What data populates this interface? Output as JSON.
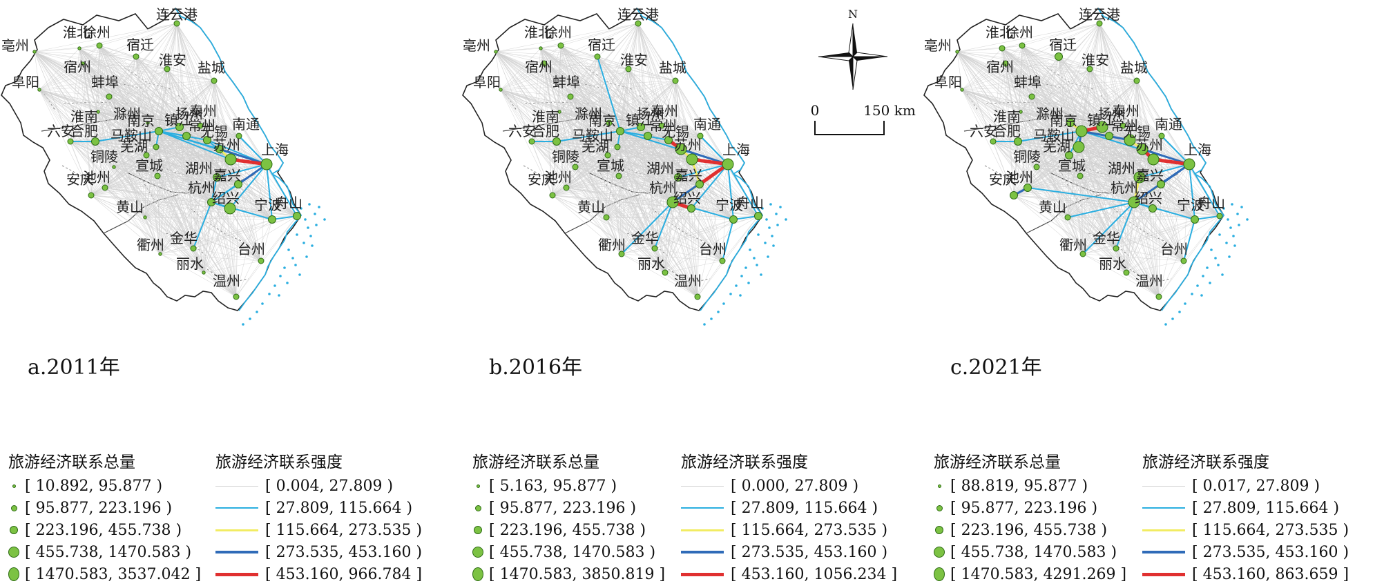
{
  "compass": {
    "north_label": "N"
  },
  "scale_bar": {
    "zero_label": "0",
    "distance_label": "150 km"
  },
  "legend_titles": {
    "total": "旅游经济联系总量",
    "strength": "旅游经济联系强度"
  },
  "line_colors": [
    "#d0d0d0",
    "#2aaee0",
    "#f2ec62",
    "#2f6bb8",
    "#e03030"
  ],
  "node_color": "#7cc243",
  "coast_color": "#2aaee0",
  "panels": [
    {
      "year_label": "a.2011年",
      "total_classes": [
        "[ 10.892, 95.877 )",
        "[ 95.877, 223.196 )",
        "[ 223.196, 455.738 )",
        "[ 455.738, 1470.583 )",
        "[ 1470.583, 3537.042 ]"
      ],
      "strength_classes": [
        "[ 0.004, 27.809 )",
        "[ 27.809, 115.664 )",
        "[ 115.664, 273.535 )",
        "[ 273.535, 453.160 )",
        "[ 453.160, 966.784 ]"
      ]
    },
    {
      "year_label": "b.2016年",
      "total_classes": [
        "[ 5.163, 95.877 )",
        "[ 95.877, 223.196 )",
        "[ 223.196, 455.738 )",
        "[ 455.738, 1470.583 )",
        "[ 1470.583, 3850.819 ]"
      ],
      "strength_classes": [
        "[ 0.000, 27.809 )",
        "[ 27.809, 115.664 )",
        "[ 115.664, 273.535 )",
        "[ 273.535, 453.160 )",
        "[ 453.160, 1056.234 ]"
      ]
    },
    {
      "year_label": "c.2021年",
      "total_classes": [
        "[ 88.819, 95.877 )",
        "[ 95.877, 223.196 )",
        "[ 223.196, 455.738 )",
        "[ 455.738, 1470.583 )",
        "[ 1470.583, 4291.269 ]"
      ],
      "strength_classes": [
        "[ 0.017, 27.809 )",
        "[ 27.809, 115.664 )",
        "[ 115.664, 273.535 )",
        "[ 273.535, 453.160 )",
        "[ 453.160, 863.659 ]"
      ]
    }
  ],
  "cities": [
    {
      "name": "连云港",
      "class": [
        1,
        1,
        1
      ]
    },
    {
      "name": "徐州",
      "class": [
        1,
        1,
        1
      ]
    },
    {
      "name": "宿迁",
      "class": [
        1,
        1,
        2
      ]
    },
    {
      "name": "淮北",
      "class": [
        0,
        0,
        1
      ]
    },
    {
      "name": "亳州",
      "class": [
        0,
        0,
        0
      ]
    },
    {
      "name": "宿州",
      "class": [
        0,
        1,
        1
      ]
    },
    {
      "name": "淮安",
      "class": [
        1,
        1,
        1
      ]
    },
    {
      "name": "盐城",
      "class": [
        1,
        1,
        1
      ]
    },
    {
      "name": "阜阳",
      "class": [
        0,
        0,
        0
      ]
    },
    {
      "name": "蚌埠",
      "class": [
        1,
        1,
        1
      ]
    },
    {
      "name": "淮南",
      "class": [
        0,
        0,
        0
      ]
    },
    {
      "name": "滁州",
      "class": [
        0,
        1,
        2
      ]
    },
    {
      "name": "泰州",
      "class": [
        1,
        1,
        1
      ]
    },
    {
      "name": "扬州",
      "class": [
        2,
        2,
        3
      ]
    },
    {
      "name": "镇江",
      "class": [
        2,
        2,
        2
      ]
    },
    {
      "name": "南京",
      "class": [
        2,
        2,
        3
      ]
    },
    {
      "name": "南通",
      "class": [
        1,
        1,
        1
      ]
    },
    {
      "name": "六安",
      "class": [
        1,
        1,
        1
      ]
    },
    {
      "name": "合肥",
      "class": [
        2,
        2,
        2
      ]
    },
    {
      "name": "马鞍山",
      "class": [
        1,
        1,
        3
      ]
    },
    {
      "name": "常州",
      "class": [
        2,
        2,
        3
      ]
    },
    {
      "name": "无锡",
      "class": [
        2,
        3,
        3
      ]
    },
    {
      "name": "芜湖",
      "class": [
        1,
        1,
        2
      ]
    },
    {
      "name": "苏州",
      "class": [
        3,
        3,
        3
      ]
    },
    {
      "name": "上海",
      "class": [
        3,
        3,
        3
      ]
    },
    {
      "name": "铜陵",
      "class": [
        0,
        1,
        1
      ]
    },
    {
      "name": "宣城",
      "class": [
        1,
        1,
        1
      ]
    },
    {
      "name": "湖州",
      "class": [
        2,
        2,
        3
      ]
    },
    {
      "name": "嘉兴",
      "class": [
        2,
        2,
        2
      ]
    },
    {
      "name": "安庆",
      "class": [
        1,
        1,
        2
      ]
    },
    {
      "name": "池州",
      "class": [
        1,
        1,
        2
      ]
    },
    {
      "name": "杭州",
      "class": [
        2,
        3,
        3
      ]
    },
    {
      "name": "绍兴",
      "class": [
        3,
        2,
        2
      ]
    },
    {
      "name": "宁波",
      "class": [
        2,
        2,
        2
      ]
    },
    {
      "name": "舟山",
      "class": [
        2,
        2,
        1
      ]
    },
    {
      "name": "黄山",
      "class": [
        0,
        1,
        1
      ]
    },
    {
      "name": "金华",
      "class": [
        1,
        1,
        1
      ]
    },
    {
      "name": "衢州",
      "class": [
        0,
        1,
        1
      ]
    },
    {
      "name": "丽水",
      "class": [
        0,
        1,
        1
      ]
    },
    {
      "name": "台州",
      "class": [
        1,
        1,
        1
      ]
    },
    {
      "name": "温州",
      "class": [
        1,
        1,
        1
      ]
    }
  ],
  "strong_links": [
    [
      [
        "上海",
        "苏州",
        4
      ],
      [
        "上海",
        "无锡",
        3
      ],
      [
        "上海",
        "嘉兴",
        3
      ],
      [
        "苏州",
        "无锡",
        2
      ],
      [
        "上海",
        "杭州",
        1
      ],
      [
        "上海",
        "宁波",
        1
      ],
      [
        "上海",
        "南京",
        1
      ],
      [
        "上海",
        "常州",
        1
      ],
      [
        "上海",
        "南通",
        1
      ],
      [
        "上海",
        "湖州",
        1
      ],
      [
        "上海",
        "舟山",
        1
      ],
      [
        "上海",
        "绍兴",
        1
      ],
      [
        "南京",
        "苏州",
        1
      ],
      [
        "南京",
        "无锡",
        1
      ],
      [
        "南京",
        "镇江",
        1
      ],
      [
        "南京",
        "扬州",
        1
      ],
      [
        "南京",
        "马鞍山",
        1
      ],
      [
        "南京",
        "合肥",
        1
      ],
      [
        "合肥",
        "六安",
        1
      ],
      [
        "杭州",
        "绍兴",
        1
      ],
      [
        "杭州",
        "嘉兴",
        1
      ],
      [
        "杭州",
        "宁波",
        1
      ],
      [
        "杭州",
        "金华",
        1
      ],
      [
        "宁波",
        "舟山",
        1
      ],
      [
        "南京",
        "常州",
        1
      ],
      [
        "苏州",
        "常州",
        1
      ],
      [
        "杭州",
        "湖州",
        1
      ]
    ],
    [
      [
        "上海",
        "苏州",
        4
      ],
      [
        "上海",
        "嘉兴",
        4
      ],
      [
        "上海",
        "杭州",
        3
      ],
      [
        "杭州",
        "绍兴",
        4
      ],
      [
        "上海",
        "无锡",
        3
      ],
      [
        "苏州",
        "无锡",
        2
      ],
      [
        "无锡",
        "常州",
        4
      ],
      [
        "苏州",
        "嘉兴",
        2
      ],
      [
        "上海",
        "宁波",
        1
      ],
      [
        "上海",
        "南京",
        1
      ],
      [
        "南京",
        "镇江",
        1
      ],
      [
        "南京",
        "扬州",
        1
      ],
      [
        "南京",
        "马鞍山",
        1
      ],
      [
        "南京",
        "合肥",
        1
      ],
      [
        "合肥",
        "六安",
        1
      ],
      [
        "杭州",
        "宁波",
        1
      ],
      [
        "杭州",
        "金华",
        1
      ],
      [
        "宁波",
        "舟山",
        1
      ],
      [
        "宁波",
        "台州",
        1
      ],
      [
        "杭州",
        "衢州",
        1
      ],
      [
        "南京",
        "宿迁",
        1
      ],
      [
        "上海",
        "湖州",
        1
      ],
      [
        "上海",
        "舟山",
        1
      ],
      [
        "上海",
        "绍兴",
        1
      ],
      [
        "杭州",
        "嘉兴",
        2
      ],
      [
        "上海",
        "南通",
        1
      ],
      [
        "南京",
        "常州",
        1
      ]
    ],
    [
      [
        "上海",
        "苏州",
        4
      ],
      [
        "上海",
        "无锡",
        3
      ],
      [
        "上海",
        "嘉兴",
        3
      ],
      [
        "上海",
        "杭州",
        3
      ],
      [
        "苏州",
        "无锡",
        4
      ],
      [
        "南京",
        "扬州",
        4
      ],
      [
        "南京",
        "常州",
        3
      ],
      [
        "南京",
        "马鞍山",
        3
      ],
      [
        "南京",
        "镇江",
        2
      ],
      [
        "无锡",
        "常州",
        2
      ],
      [
        "杭州",
        "湖州",
        2
      ],
      [
        "杭州",
        "嘉兴",
        2
      ],
      [
        "安庆",
        "池州",
        3
      ],
      [
        "上海",
        "宁波",
        1
      ],
      [
        "上海",
        "南京",
        1
      ],
      [
        "南京",
        "合肥",
        1
      ],
      [
        "合肥",
        "六安",
        1
      ],
      [
        "杭州",
        "宁波",
        1
      ],
      [
        "杭州",
        "金华",
        1
      ],
      [
        "杭州",
        "绍兴",
        1
      ],
      [
        "杭州",
        "衢州",
        1
      ],
      [
        "宁波",
        "台州",
        1
      ],
      [
        "宁波",
        "舟山",
        1
      ],
      [
        "上海",
        "南通",
        1
      ],
      [
        "上海",
        "湖州",
        1
      ],
      [
        "杭州",
        "黄山",
        1
      ],
      [
        "南京",
        "芜湖",
        1
      ],
      [
        "南京",
        "滁州",
        2
      ],
      [
        "上海",
        "舟山",
        1
      ],
      [
        "杭州",
        "池州",
        1
      ]
    ]
  ]
}
